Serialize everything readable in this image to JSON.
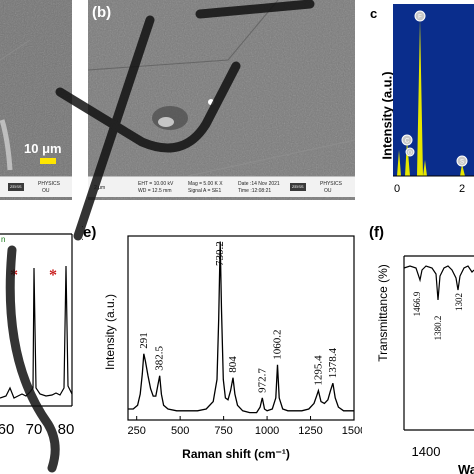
{
  "panels": {
    "a": {
      "label": "",
      "scale_bar": "10 μm",
      "info_logo": "ZEISS",
      "info_institution_1": "PHYSICS",
      "info_institution_2": "OU"
    },
    "b": {
      "label": "(b)",
      "info_scale": "2 μm",
      "info_line1": "EHT = 10.00 kV",
      "info_line2": "WD = 12.5 mm",
      "info_line3": "Mag = 5.00 K X",
      "info_line4": "Signal A = SE1",
      "info_line5": "Date :14 Nov 2021",
      "info_line6": "Time :12:08:21",
      "info_logo": "ZEISS",
      "info_institution_1": "PHYSICS",
      "info_institution_2": "OU"
    },
    "c": {
      "label": "c",
      "ylabel": "Intensity (a.u.)",
      "peak_labels": [
        "F",
        "C",
        "O",
        "S"
      ],
      "xticks": [
        "0",
        "2"
      ]
    },
    "d": {
      "xticks": [
        "60",
        "70",
        "80"
      ],
      "partial_label": "n",
      "markers": [
        "*",
        "*"
      ]
    },
    "e": {
      "label": "(e)",
      "ylabel": "Intensity (a.u.)",
      "xlabel": "Raman shift (cm⁻¹)",
      "xticks": [
        "250",
        "500",
        "750",
        "1000",
        "1250",
        "1500"
      ]
    },
    "f": {
      "label": "(f)",
      "ylabel": "Transmittance (%)",
      "xticks": [
        "1400"
      ],
      "xlabel_partial": "Wa",
      "peak_labels": [
        "1466.9",
        "1380.2",
        "1302"
      ]
    }
  },
  "chart_data": [
    {
      "type": "line",
      "panel": "e",
      "xlabel": "Raman shift (cm⁻¹)",
      "ylabel": "Intensity (a.u.)",
      "xlim": [
        200,
        1500
      ],
      "ylim": [
        0,
        1
      ],
      "series": [
        {
          "x": [
            200,
            230,
            255,
            270,
            282,
            291,
            300,
            315,
            330,
            345,
            360,
            372,
            382.5,
            392,
            405,
            430,
            480,
            540,
            600,
            650,
            690,
            712,
            722,
            730.2,
            738,
            748,
            760,
            775,
            790,
            804,
            815,
            830,
            860,
            900,
            940,
            960,
            972.7,
            985,
            1000,
            1030,
            1050,
            1060.2,
            1070,
            1090,
            1120,
            1160,
            1200,
            1240,
            1270,
            1285,
            1295.4,
            1310,
            1330,
            1350,
            1365,
            1378.4,
            1392,
            1410,
            1440,
            1470,
            1500
          ],
          "y": [
            0.06,
            0.06,
            0.08,
            0.14,
            0.25,
            0.36,
            0.32,
            0.24,
            0.17,
            0.13,
            0.13,
            0.19,
            0.24,
            0.14,
            0.08,
            0.06,
            0.05,
            0.05,
            0.05,
            0.06,
            0.1,
            0.22,
            0.55,
            0.97,
            0.6,
            0.22,
            0.12,
            0.11,
            0.16,
            0.23,
            0.14,
            0.08,
            0.05,
            0.04,
            0.04,
            0.07,
            0.12,
            0.06,
            0.05,
            0.06,
            0.12,
            0.3,
            0.12,
            0.06,
            0.05,
            0.05,
            0.05,
            0.06,
            0.09,
            0.13,
            0.16,
            0.1,
            0.09,
            0.11,
            0.16,
            0.2,
            0.12,
            0.07,
            0.05,
            0.05,
            0.05
          ]
        }
      ],
      "annotations": [
        {
          "x": 291,
          "text": "291"
        },
        {
          "x": 382.5,
          "text": "382.5"
        },
        {
          "x": 730.2,
          "text": "730.2"
        },
        {
          "x": 804,
          "text": "804"
        },
        {
          "x": 972.7,
          "text": "972.7"
        },
        {
          "x": 1060.2,
          "text": "1060.2"
        },
        {
          "x": 1295.4,
          "text": "1295.4"
        },
        {
          "x": 1378.4,
          "text": "1378.4"
        }
      ]
    }
  ],
  "colors": {
    "eds_fill": "#e6e600",
    "eds_bg": "#0a2d8c",
    "marker": "#c81e1e"
  }
}
